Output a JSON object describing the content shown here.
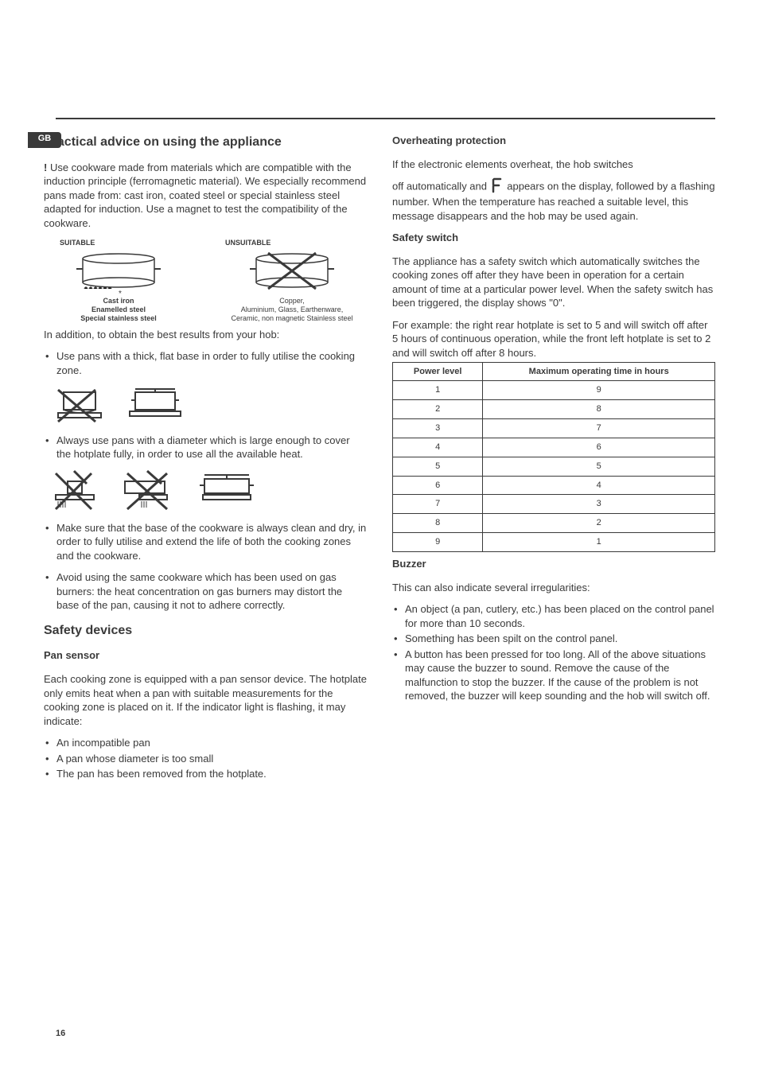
{
  "page_tag": "GB",
  "page_number": "16",
  "colors": {
    "text": "#3a3a3a",
    "rule": "#3a3a3a",
    "bg": "#ffffff"
  },
  "typography": {
    "body_size_pt": 10,
    "h2_size_pt": 12,
    "line_height": 1.35
  },
  "left": {
    "h_practical": "Practical advice on using the appliance",
    "intro": " Use cookware made from materials which are compatible with the induction principle (ferromagnetic material). We especially recommend pans made from: cast iron, coated steel or special stainless steel adapted for induction. Use a magnet to test the compatibility of the cookware.",
    "excl": "!",
    "suitable_label": "SUITABLE",
    "unsuitable_label": "UNSUITABLE",
    "suitable_caption": "Cast iron\nEnamelled steel\nSpecial stainless steel",
    "unsuitable_caption": "Copper,\nAluminium, Glass, Earthenware,\nCeramic, non magnetic Stainless steel",
    "addition": "In addition, to obtain the best results from your hob:",
    "tip1": "Use pans with a thick, flat base in order to fully utilise the cooking zone.",
    "tip2": "Always use pans with a diameter which is large enough to cover the hotplate fully, in order to use all the available heat.",
    "tip3": "Make sure that the base of the cookware is always clean and dry, in order to fully utilise and extend the life of both the cooking zones and the cookware.",
    "tip4": "Avoid using the same cookware which has been used on gas burners: the heat concentration on gas burners may distort the base of the pan, causing it not to adhere correctly.",
    "h_safety": "Safety devices",
    "h_pan": "Pan sensor",
    "pan_text": "Each cooking zone is equipped with a pan sensor device. The hotplate only emits heat when a pan with suitable measurements for the cooking zone is placed on it. If the indicator light is flashing, it may indicate:",
    "pan_b1": "An incompatible pan",
    "pan_b2": "A pan whose diameter is too small",
    "pan_b3": "The pan has been removed from the hotplate."
  },
  "right": {
    "h_over": "Overheating protection",
    "over_p1": "If the electronic elements overheat, the hob switches",
    "over_p2a": "off automatically and ",
    "over_p2b": " appears on the display, followed by a flashing number. When the temperature has reached a suitable level, this message disappears and the hob may be used again.",
    "h_switch": "Safety switch",
    "switch_p1": "The appliance has a safety switch which automatically switches the cooking zones off after they have been in operation for a certain amount of time at a particular power level. When the safety switch has been triggered, the display shows \"0\".",
    "switch_p2": "For example: the right rear hotplate is set to 5 and will switch off after 5 hours of continuous operation, while the front left hotplate is set to 2 and will switch off after 8 hours.",
    "table": {
      "header_left": "Power level",
      "header_right": "Maximum operating time in hours",
      "rows": [
        [
          "1",
          "9"
        ],
        [
          "2",
          "8"
        ],
        [
          "3",
          "7"
        ],
        [
          "4",
          "6"
        ],
        [
          "5",
          "5"
        ],
        [
          "6",
          "4"
        ],
        [
          "7",
          "3"
        ],
        [
          "8",
          "2"
        ],
        [
          "9",
          "1"
        ]
      ]
    },
    "h_buzzer": "Buzzer",
    "buzzer_intro": "This can also indicate several irregularities:",
    "buzz_b1": "An object (a pan, cutlery, etc.) has been placed on the control panel for more than 10 seconds.",
    "buzz_b2": "Something has been spilt on the control panel.",
    "buzz_b3": "A button has been pressed for too long. All of the above situations may cause the buzzer to sound. Remove the cause of the malfunction to stop the buzzer. If the cause of the problem is not removed, the buzzer will keep sounding and the hob will switch off."
  }
}
